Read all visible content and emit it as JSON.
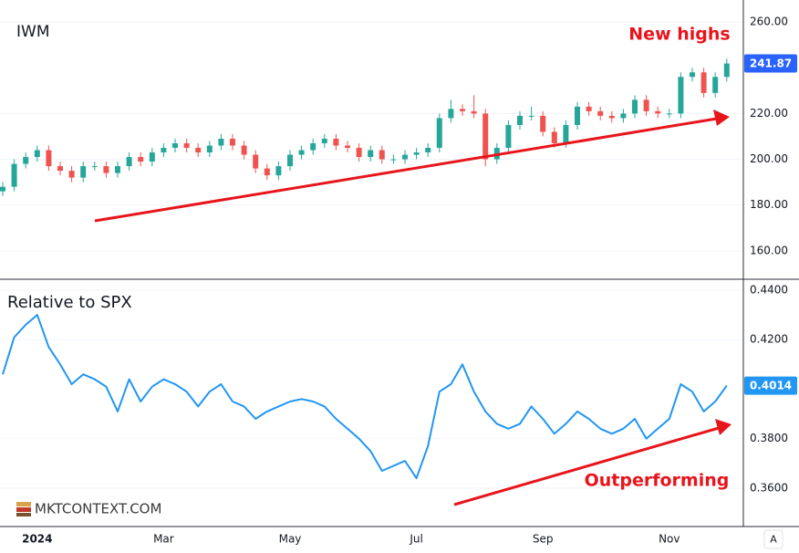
{
  "chart_data": [
    {
      "type": "candlestick",
      "title": "IWM",
      "annotation": "New highs",
      "up_color": "#26a69a",
      "down_color": "#ef5350",
      "last_color": "#2962ff",
      "ylim": [
        148,
        269.6
      ],
      "yticks": [
        {
          "value": 160,
          "label": "160.00"
        },
        {
          "value": 180,
          "label": "180.00"
        },
        {
          "value": 200,
          "label": "200.00"
        },
        {
          "value": 220,
          "label": "220.00"
        },
        {
          "value": 260,
          "label": "260.00"
        }
      ],
      "grid": true,
      "open": [
        186,
        188,
        198,
        201,
        204,
        197,
        195,
        192,
        197,
        197,
        194,
        197,
        201,
        199,
        203,
        205,
        207,
        205,
        203,
        206,
        209,
        206,
        202,
        196,
        193,
        197,
        202,
        204,
        207,
        209,
        206,
        205,
        201,
        204,
        200,
        200,
        202,
        203,
        205,
        218,
        222,
        221,
        220,
        200,
        205,
        215,
        219,
        219,
        212,
        207,
        215,
        223,
        221,
        219,
        218,
        220,
        226,
        221,
        220,
        220,
        236,
        238,
        229,
        236
      ],
      "high": [
        190,
        200,
        203,
        206,
        206,
        199,
        197,
        199,
        199,
        199,
        199,
        203,
        203,
        205,
        207,
        209,
        209,
        207,
        208,
        211,
        211,
        208,
        204,
        198,
        199,
        204,
        206,
        209,
        211,
        211,
        208,
        207,
        206,
        206,
        202,
        204,
        205,
        207,
        220,
        226,
        224,
        228,
        222,
        207,
        217,
        221,
        223,
        221,
        214,
        217,
        225,
        225,
        223,
        221,
        222,
        228,
        228,
        223,
        222,
        238,
        240,
        240,
        238,
        244
      ],
      "low": [
        184,
        186,
        196,
        199,
        195,
        193,
        190,
        190,
        195,
        192,
        192,
        195,
        197,
        197,
        201,
        203,
        203,
        201,
        201,
        204,
        204,
        200,
        194,
        191,
        191,
        195,
        200,
        202,
        205,
        204,
        203,
        199,
        199,
        198,
        198,
        198,
        200,
        201,
        203,
        216,
        219,
        218,
        197,
        198,
        203,
        213,
        217,
        210,
        205,
        205,
        213,
        219,
        217,
        216,
        216,
        218,
        219,
        218,
        218,
        218,
        234,
        227,
        227,
        234
      ],
      "close": [
        188,
        198,
        201,
        204,
        197,
        195,
        192,
        197,
        197,
        194,
        197,
        201,
        199,
        203,
        205,
        207,
        205,
        203,
        206,
        209,
        206,
        202,
        196,
        193,
        197,
        202,
        204,
        207,
        209,
        206,
        205,
        201,
        204,
        200,
        200,
        202,
        203,
        205,
        218,
        222,
        221,
        220,
        200,
        205,
        215,
        219,
        219,
        212,
        207,
        215,
        223,
        221,
        219,
        218,
        220,
        226,
        221,
        220,
        220,
        236,
        238,
        229,
        236,
        241.87
      ]
    },
    {
      "type": "line",
      "title": "Relative to SPX",
      "annotation": "Outperforming",
      "color": "#2196f3",
      "last_color": "#2196f3",
      "ylim": [
        0.3445,
        0.4444
      ],
      "yticks": [
        {
          "value": 0.36,
          "label": "0.3600"
        },
        {
          "value": 0.38,
          "label": "0.3800"
        },
        {
          "value": 0.42,
          "label": "0.4200"
        },
        {
          "value": 0.44,
          "label": "0.4400"
        }
      ],
      "grid": true,
      "categories": [
        null,
        null,
        null,
        "2024",
        null,
        null,
        null,
        null,
        null,
        null,
        null,
        null,
        null,
        null,
        "Mar",
        null,
        null,
        null,
        null,
        null,
        null,
        null,
        null,
        null,
        null,
        "May",
        null,
        null,
        null,
        null,
        null,
        null,
        null,
        null,
        null,
        null,
        "Jul",
        null,
        null,
        null,
        null,
        null,
        null,
        null,
        null,
        null,
        null,
        "Sep",
        null,
        null,
        null,
        null,
        null,
        null,
        null,
        null,
        null,
        null,
        "Nov",
        null,
        null,
        null,
        null,
        null
      ],
      "values": [
        0.406,
        0.421,
        0.426,
        0.43,
        0.417,
        0.41,
        0.402,
        0.406,
        0.404,
        0.401,
        0.391,
        0.404,
        0.395,
        0.401,
        0.404,
        0.402,
        0.399,
        0.393,
        0.399,
        0.402,
        0.395,
        0.393,
        0.388,
        0.391,
        0.393,
        0.395,
        0.396,
        0.395,
        0.393,
        0.388,
        0.384,
        0.38,
        0.375,
        0.367,
        0.369,
        0.371,
        0.364,
        0.377,
        0.399,
        0.402,
        0.41,
        0.399,
        0.391,
        0.386,
        0.384,
        0.386,
        0.393,
        0.388,
        0.382,
        0.386,
        0.391,
        0.388,
        0.384,
        0.382,
        0.384,
        0.388,
        0.38,
        0.384,
        0.388,
        0.402,
        0.399,
        0.391,
        0.395,
        0.4014
      ]
    }
  ],
  "watermark": "MKTCONTEXT.COM",
  "scale_button": "A"
}
